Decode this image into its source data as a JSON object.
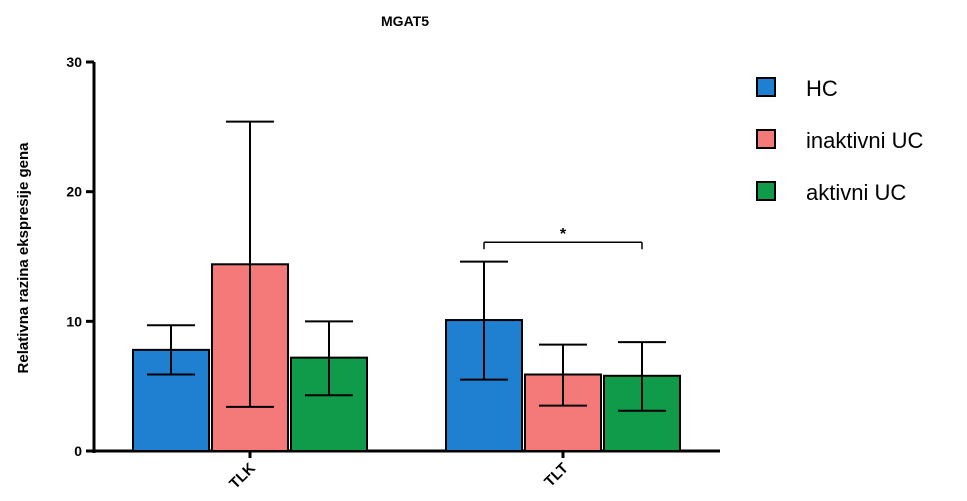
{
  "chart_data": {
    "type": "bar",
    "title": "MGAT5",
    "ylabel": "Relativna razina ekspresije gena",
    "xlabel": "",
    "ylim": [
      0,
      30
    ],
    "yticks": [
      0,
      10,
      20,
      30
    ],
    "categories": [
      "TLK",
      "TLT"
    ],
    "series": [
      {
        "name": "HC",
        "color": "#1f7fd0",
        "values": [
          7.8,
          10.1
        ],
        "err_low": [
          5.9,
          5.5
        ],
        "err_high": [
          9.7,
          14.6
        ]
      },
      {
        "name": "inaktivni UC",
        "color": "#f47a7a",
        "values": [
          14.4,
          5.9
        ],
        "err_low": [
          3.4,
          3.5
        ],
        "err_high": [
          25.4,
          8.2
        ]
      },
      {
        "name": "aktivni UC",
        "color": "#0f9b4a",
        "values": [
          7.2,
          5.8
        ],
        "err_low": [
          4.3,
          3.1
        ],
        "err_high": [
          10.0,
          8.4
        ]
      }
    ],
    "significance": [
      {
        "category": "TLT",
        "from_series": "HC",
        "to_series": "aktivni UC",
        "label": "*",
        "y": 16.1
      }
    ],
    "legend_position": "right",
    "grid": false
  }
}
